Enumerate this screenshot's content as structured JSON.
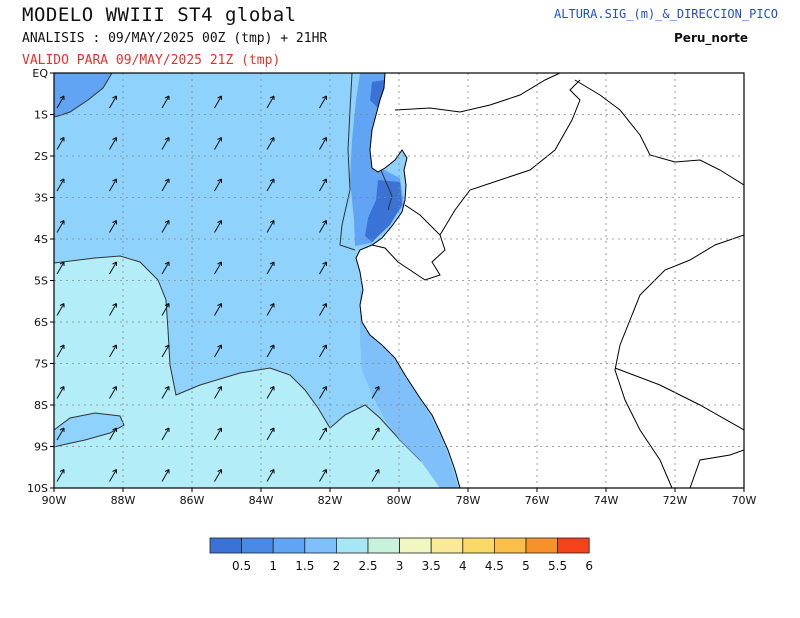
{
  "header": {
    "title": "MODELO  WWIII  ST4  global",
    "analysis": "ANALISIS : 09/MAY/2025 00Z  (tmp) + 21HR",
    "valid": "VALIDO PARA  09/MAY/2025 21Z  (tmp)",
    "product": "ALTURA.SIG_(m)_&_DIRECCION_PICO",
    "region": "Peru_norte"
  },
  "map": {
    "lat_labels": [
      "EQ",
      "1S",
      "2S",
      "3S",
      "4S",
      "5S",
      "6S",
      "7S",
      "8S",
      "9S",
      "10S"
    ],
    "lon_labels": [
      "90W",
      "88W",
      "86W",
      "84W",
      "82W",
      "80W",
      "78W",
      "76W",
      "74W",
      "72W",
      "70W"
    ],
    "grid": true,
    "land_color": "#ffffff",
    "wave_direction": "north-east"
  },
  "legend": {
    "labels": [
      "0.5",
      "1",
      "1.5",
      "2",
      "2.5",
      "3",
      "3.5",
      "4",
      "4.5",
      "5",
      "5.5",
      "6"
    ],
    "colors": [
      "#3a72d6",
      "#4a8ae6",
      "#62a4f4",
      "#7fc0fb",
      "#a6e6f5",
      "#c8f2dc",
      "#f2f7c2",
      "#fbe99a",
      "#fbd86a",
      "#f9bf4a",
      "#f7922a",
      "#f5421a"
    ]
  }
}
